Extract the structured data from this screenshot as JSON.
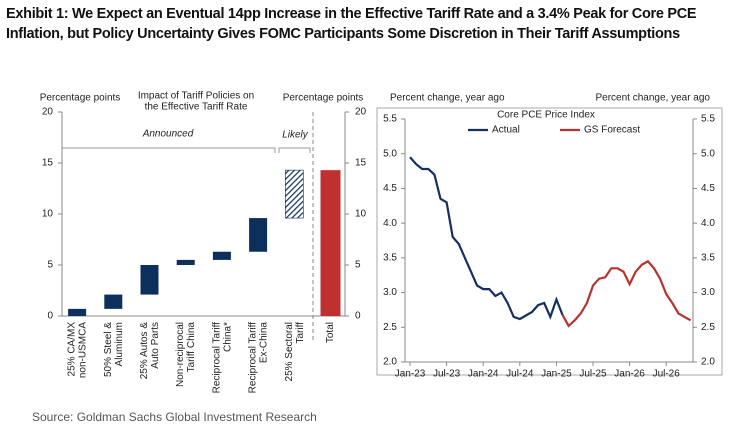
{
  "title": "Exhibit 1: We Expect an Eventual 14pp Increase in the Effective Tariff Rate and a 3.4% Peak for Core PCE Inflation, but Policy Uncertainty Gives FOMC Participants Some Discretion in Their Tariff Assumptions",
  "source": "Source: Goldman Sachs Global Investment Research",
  "chart_data": [
    {
      "type": "waterfall",
      "title": "Impact of Tariff Policies on\nthe Effective Tariff Rate",
      "y_label": "Percentage points",
      "y2_label": "Percentage points",
      "annotations": [
        "Announced",
        "Likely"
      ],
      "categories": [
        "25% CA/MX\nnon-USMCA",
        "50% Steel &\nAluminum",
        "25% Autos &\nAuto Parts",
        "Non-reciprocal\nTariff China",
        "Reciprocal Tariff\nChina*",
        "Reciprocal Tariff\nEx-China",
        "25% Sectoral\nTariff",
        "Total"
      ],
      "values": [
        0.7,
        1.4,
        2.9,
        0.5,
        0.8,
        3.3,
        4.7,
        14.3
      ],
      "is_total": [
        false,
        false,
        false,
        false,
        false,
        false,
        false,
        true
      ],
      "hatched": [
        false,
        false,
        false,
        false,
        false,
        false,
        true,
        false
      ],
      "colors": [
        "#0c2f5c",
        "#0c2f5c",
        "#0c2f5c",
        "#0c2f5c",
        "#0c2f5c",
        "#0c2f5c",
        "#0c2f5c",
        "#c0302f"
      ],
      "ylim": [
        0,
        20
      ],
      "yticks": [
        0,
        5,
        10,
        15,
        20
      ],
      "y2lim": [
        0,
        20
      ],
      "y2ticks": [
        0,
        5,
        10,
        15,
        20
      ]
    },
    {
      "type": "line",
      "title": "Core PCE Price Index",
      "y_label": "Percent change, year ago",
      "y2_label": "Percent change, year ago",
      "categories": [
        "Jan-23",
        null,
        null,
        null,
        null,
        null,
        "Jul-23",
        null,
        null,
        null,
        null,
        null,
        "Jan-24",
        null,
        null,
        null,
        null,
        null,
        "Jul-24",
        null,
        null,
        null,
        null,
        null,
        "Jan-25",
        null,
        null,
        null,
        null,
        null,
        "Jul-25",
        null,
        null,
        null,
        null,
        null,
        "Jan-26",
        null,
        null,
        null,
        null,
        null,
        "Jul-26",
        null,
        null,
        null,
        null
      ],
      "series": [
        {
          "name": "Actual",
          "color": "#13305e",
          "values": [
            4.95,
            4.85,
            4.78,
            4.78,
            4.7,
            4.35,
            4.3,
            3.8,
            3.7,
            3.5,
            3.3,
            3.1,
            3.05,
            3.05,
            2.95,
            3.0,
            2.85,
            2.65,
            2.62,
            2.67,
            2.72,
            2.82,
            2.85,
            2.65,
            2.9,
            2.68,
            null,
            null,
            null,
            null,
            null,
            null,
            null,
            null,
            null,
            null,
            null,
            null,
            null,
            null,
            null,
            null,
            null,
            null,
            null,
            null,
            null
          ]
        },
        {
          "name": "GS Forecast",
          "color": "#b8322f",
          "values": [
            null,
            null,
            null,
            null,
            null,
            null,
            null,
            null,
            null,
            null,
            null,
            null,
            null,
            null,
            null,
            null,
            null,
            null,
            null,
            null,
            null,
            null,
            null,
            null,
            null,
            2.68,
            2.52,
            2.6,
            2.7,
            2.85,
            3.1,
            3.2,
            3.22,
            3.35,
            3.35,
            3.3,
            3.12,
            3.3,
            3.4,
            3.45,
            3.35,
            3.2,
            2.98,
            2.85,
            2.7,
            2.65,
            2.6
          ]
        }
      ],
      "ylim": [
        2,
        5.5
      ],
      "yticks": [
        {
          "value": 2,
          "label": "2.0"
        },
        2.5,
        {
          "value": 3,
          "label": "3.0"
        },
        3.5,
        {
          "value": 4,
          "label": "4.0"
        },
        4.5,
        {
          "value": 5,
          "label": "5.0"
        },
        5.5
      ],
      "y2lim": [
        2,
        5.5
      ],
      "y2ticks": [
        {
          "value": 2,
          "label": "2.0"
        },
        2.5,
        {
          "value": 3,
          "label": "3.0"
        },
        3.5,
        {
          "value": 4,
          "label": "4.0"
        },
        4.5,
        {
          "value": 5,
          "label": "5.0"
        },
        5.5
      ]
    }
  ]
}
